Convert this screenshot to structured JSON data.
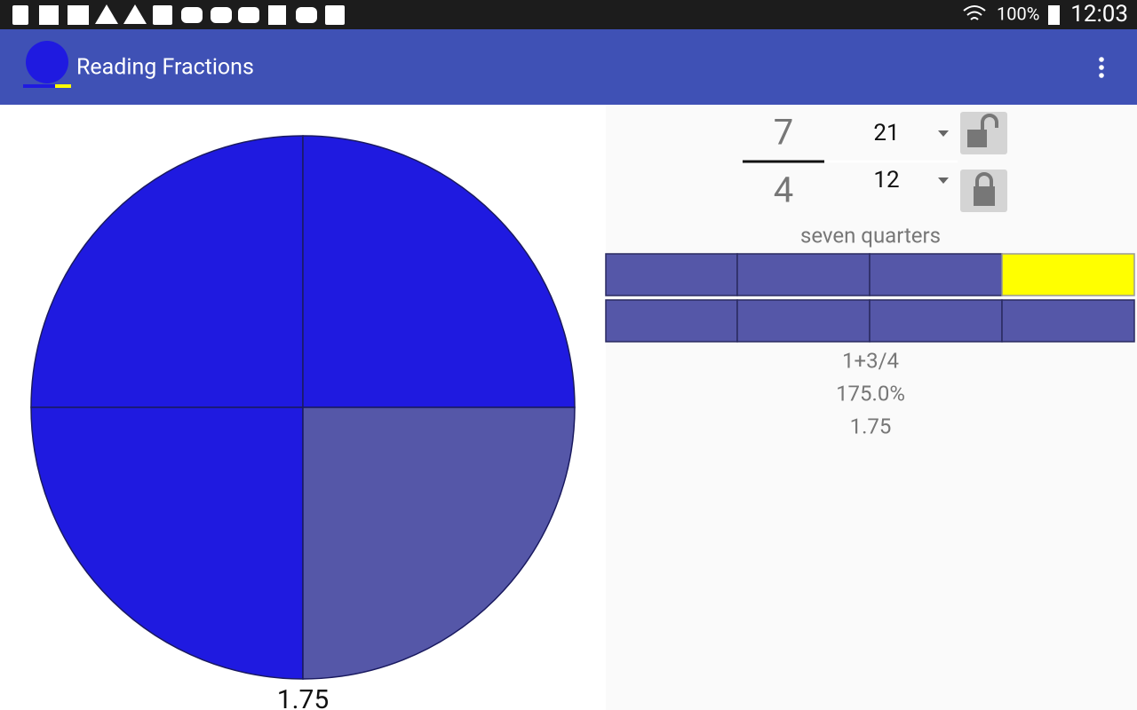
{
  "status_bar": {
    "battery": "100%",
    "time": "12:03"
  },
  "toolbar": {
    "title": "Reading Fractions"
  },
  "fraction": {
    "numerator": "7",
    "denominator": "4",
    "numerator_spinner": "21",
    "denominator_spinner": "12"
  },
  "words": "seven quarters",
  "results": {
    "mixed": "1+3/4",
    "percent": "175.0%",
    "decimal": "1.75"
  },
  "pie_label": "1.75"
}
